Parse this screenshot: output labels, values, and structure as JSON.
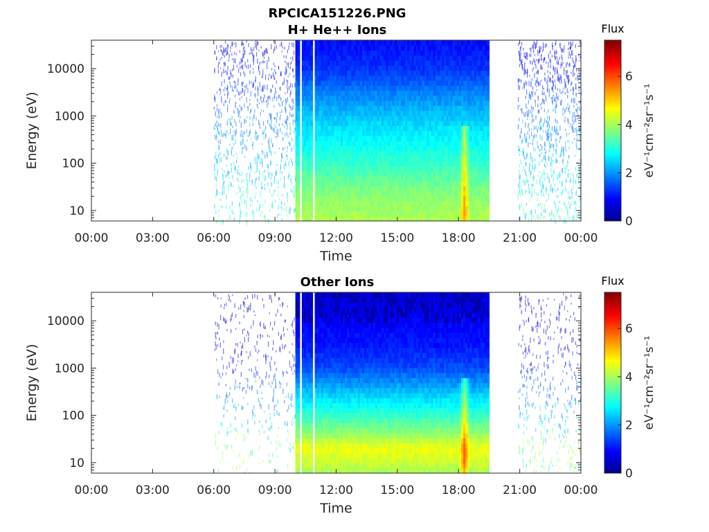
{
  "figure": {
    "title_line1": "RPCICA151226.PNG",
    "title_line2": "H+ He++ Ions"
  },
  "chart_data": [
    {
      "type": "heatmap",
      "title": "H+ He++ Ions",
      "xlabel": "Time",
      "ylabel": "Energy (eV)",
      "x_ticks": [
        "00:00",
        "03:00",
        "06:00",
        "09:00",
        "12:00",
        "15:00",
        "18:00",
        "21:00",
        "00:00"
      ],
      "x_range_hours": [
        0,
        24
      ],
      "y_scale": "log",
      "y_ticks": [
        10,
        100,
        1000,
        10000
      ],
      "y_tick_labels": [
        "10",
        "100",
        "1000",
        "10000"
      ],
      "ylim": [
        6,
        40000
      ],
      "sparse_intervals_hours": [
        [
          6.0,
          10.0
        ],
        [
          20.9,
          24.0
        ]
      ],
      "dense_interval_hours": [
        10.0,
        19.5
      ],
      "data_gaps_hours": [
        [
          10.25,
          10.3
        ],
        [
          10.85,
          10.92
        ]
      ],
      "enhancement_hour": 18.3,
      "flux_profile": {
        "energy_ev": [
          6,
          10,
          30,
          100,
          300,
          1000,
          3000,
          10000,
          40000
        ],
        "flux": [
          4.1,
          4.0,
          3.7,
          3.2,
          2.8,
          2.4,
          1.9,
          1.3,
          1.0
        ]
      },
      "colorbar": {
        "title": "Flux",
        "label": "eV⁻¹cm⁻²sr⁻¹s⁻¹",
        "ticks": [
          "0",
          "2",
          "4",
          "6"
        ],
        "range": [
          0,
          7.5
        ],
        "colormap": "jet"
      }
    },
    {
      "type": "heatmap",
      "title": "Other Ions",
      "xlabel": "Time",
      "ylabel": "Energy (eV)",
      "x_ticks": [
        "00:00",
        "03:00",
        "06:00",
        "09:00",
        "12:00",
        "15:00",
        "18:00",
        "21:00",
        "00:00"
      ],
      "x_range_hours": [
        0,
        24
      ],
      "y_scale": "log",
      "y_ticks": [
        10,
        100,
        1000,
        10000
      ],
      "y_tick_labels": [
        "10",
        "100",
        "1000",
        "10000"
      ],
      "ylim": [
        6,
        40000
      ],
      "sparse_intervals_hours": [
        [
          6.0,
          10.0
        ],
        [
          20.9,
          24.0
        ]
      ],
      "dense_interval_hours": [
        10.0,
        19.5
      ],
      "data_gaps_hours": [
        [
          10.25,
          10.3
        ],
        [
          10.85,
          10.92
        ]
      ],
      "enhancement_hour": 18.3,
      "flux_profile": {
        "energy_ev": [
          6,
          10,
          20,
          40,
          100,
          300,
          1000,
          3000,
          10000,
          40000
        ],
        "flux": [
          4.0,
          4.3,
          4.6,
          3.9,
          3.2,
          2.4,
          1.5,
          1.1,
          0.9,
          0.6
        ]
      },
      "colorbar": {
        "title": "Flux",
        "label": "eV⁻¹cm⁻²sr⁻¹s⁻¹",
        "ticks": [
          "0",
          "2",
          "4",
          "6"
        ],
        "range": [
          0,
          7.5
        ],
        "colormap": "jet"
      }
    }
  ]
}
